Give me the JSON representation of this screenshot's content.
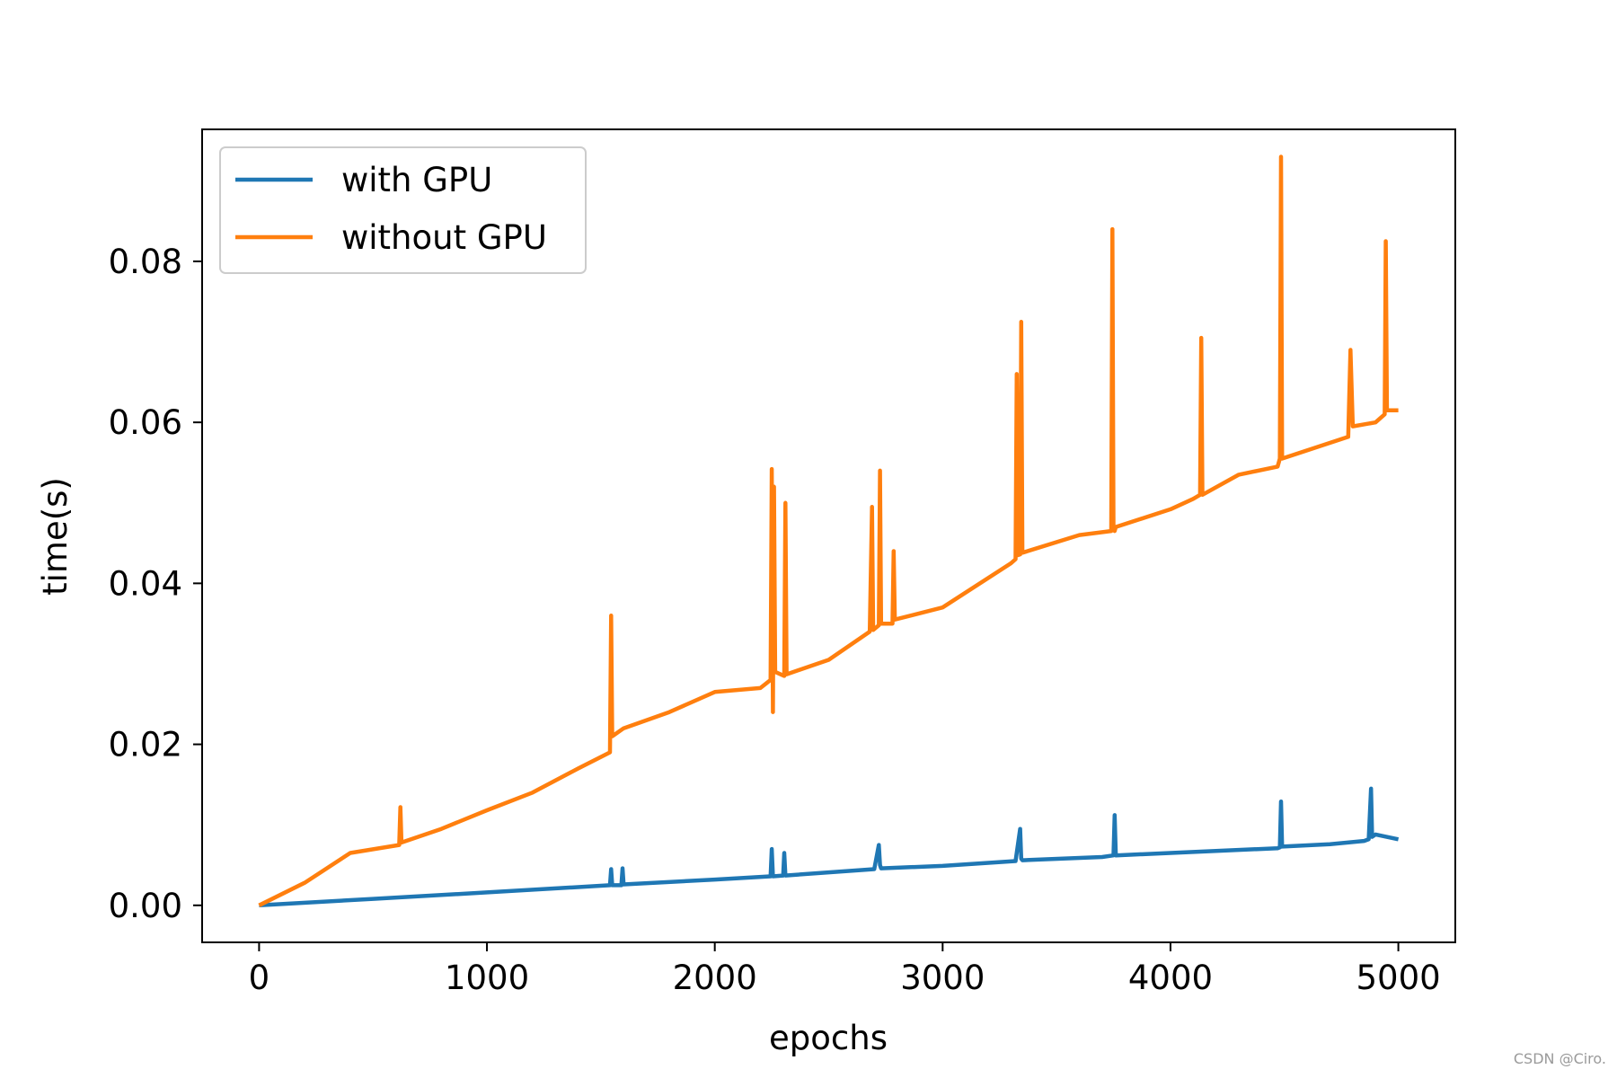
{
  "chart_data": {
    "type": "line",
    "title": "",
    "xlabel": "epochs",
    "ylabel": "time(s)",
    "xlim": [
      -250,
      5250
    ],
    "ylim": [
      -0.0046,
      0.0964
    ],
    "x_ticks": [
      0,
      1000,
      2000,
      3000,
      4000,
      5000
    ],
    "x_tick_labels": [
      "0",
      "1000",
      "2000",
      "3000",
      "4000",
      "5000"
    ],
    "y_ticks": [
      0.0,
      0.02,
      0.04,
      0.06,
      0.08
    ],
    "y_tick_labels": [
      "0.00",
      "0.02",
      "0.04",
      "0.06",
      "0.08"
    ],
    "grid": false,
    "legend_position": "upper-left",
    "series": [
      {
        "name": "with GPU",
        "color": "#1f77b4",
        "x": [
          0,
          500,
          1000,
          1540,
          1545,
          1550,
          1590,
          1595,
          1600,
          2000,
          2245,
          2250,
          2255,
          2300,
          2305,
          2310,
          2700,
          2720,
          2725,
          2730,
          3000,
          3320,
          3340,
          3345,
          3350,
          3700,
          3750,
          3755,
          3760,
          4000,
          4470,
          4480,
          4485,
          4490,
          4700,
          4850,
          4870,
          4880,
          4885,
          4900,
          5000
        ],
        "values": [
          0.0,
          0.0008,
          0.0016,
          0.0025,
          0.0045,
          0.0025,
          0.0025,
          0.0046,
          0.0026,
          0.0032,
          0.0036,
          0.007,
          0.0036,
          0.0037,
          0.0065,
          0.0037,
          0.0045,
          0.0075,
          0.005,
          0.0046,
          0.0049,
          0.0055,
          0.0095,
          0.0058,
          0.0056,
          0.006,
          0.0062,
          0.0112,
          0.0062,
          0.0065,
          0.0071,
          0.0072,
          0.0129,
          0.0073,
          0.0076,
          0.008,
          0.0082,
          0.0145,
          0.0085,
          0.0088,
          0.0082
        ]
      },
      {
        "name": "without GPU",
        "color": "#ff7f0e",
        "x": [
          0,
          200,
          400,
          615,
          620,
          625,
          800,
          1000,
          1200,
          1400,
          1540,
          1545,
          1550,
          1600,
          1800,
          2000,
          2200,
          2245,
          2250,
          2255,
          2260,
          2265,
          2305,
          2310,
          2315,
          2500,
          2680,
          2690,
          2695,
          2720,
          2725,
          2730,
          2780,
          2785,
          2790,
          3000,
          3300,
          3320,
          3325,
          3330,
          3340,
          3345,
          3350,
          3600,
          3740,
          3745,
          3750,
          3755,
          3760,
          4000,
          4100,
          4130,
          4135,
          4140,
          4300,
          4470,
          4480,
          4485,
          4490,
          4780,
          4790,
          4800,
          4900,
          4940,
          4945,
          4950,
          5000
        ],
        "values": [
          0.0,
          0.0028,
          0.0065,
          0.0075,
          0.0122,
          0.0078,
          0.0095,
          0.0118,
          0.014,
          0.017,
          0.019,
          0.036,
          0.021,
          0.022,
          0.024,
          0.0265,
          0.027,
          0.028,
          0.0542,
          0.024,
          0.052,
          0.029,
          0.0285,
          0.05,
          0.0287,
          0.0305,
          0.034,
          0.0495,
          0.0342,
          0.0348,
          0.054,
          0.035,
          0.035,
          0.044,
          0.0355,
          0.037,
          0.0425,
          0.043,
          0.066,
          0.0435,
          0.0436,
          0.0725,
          0.0438,
          0.046,
          0.0465,
          0.084,
          0.0467,
          0.0465,
          0.047,
          0.0492,
          0.0505,
          0.051,
          0.0705,
          0.051,
          0.0535,
          0.0545,
          0.0555,
          0.093,
          0.0555,
          0.0582,
          0.069,
          0.0595,
          0.06,
          0.061,
          0.0825,
          0.0615,
          0.0615
        ]
      }
    ]
  },
  "watermark": "CSDN @Ciro."
}
